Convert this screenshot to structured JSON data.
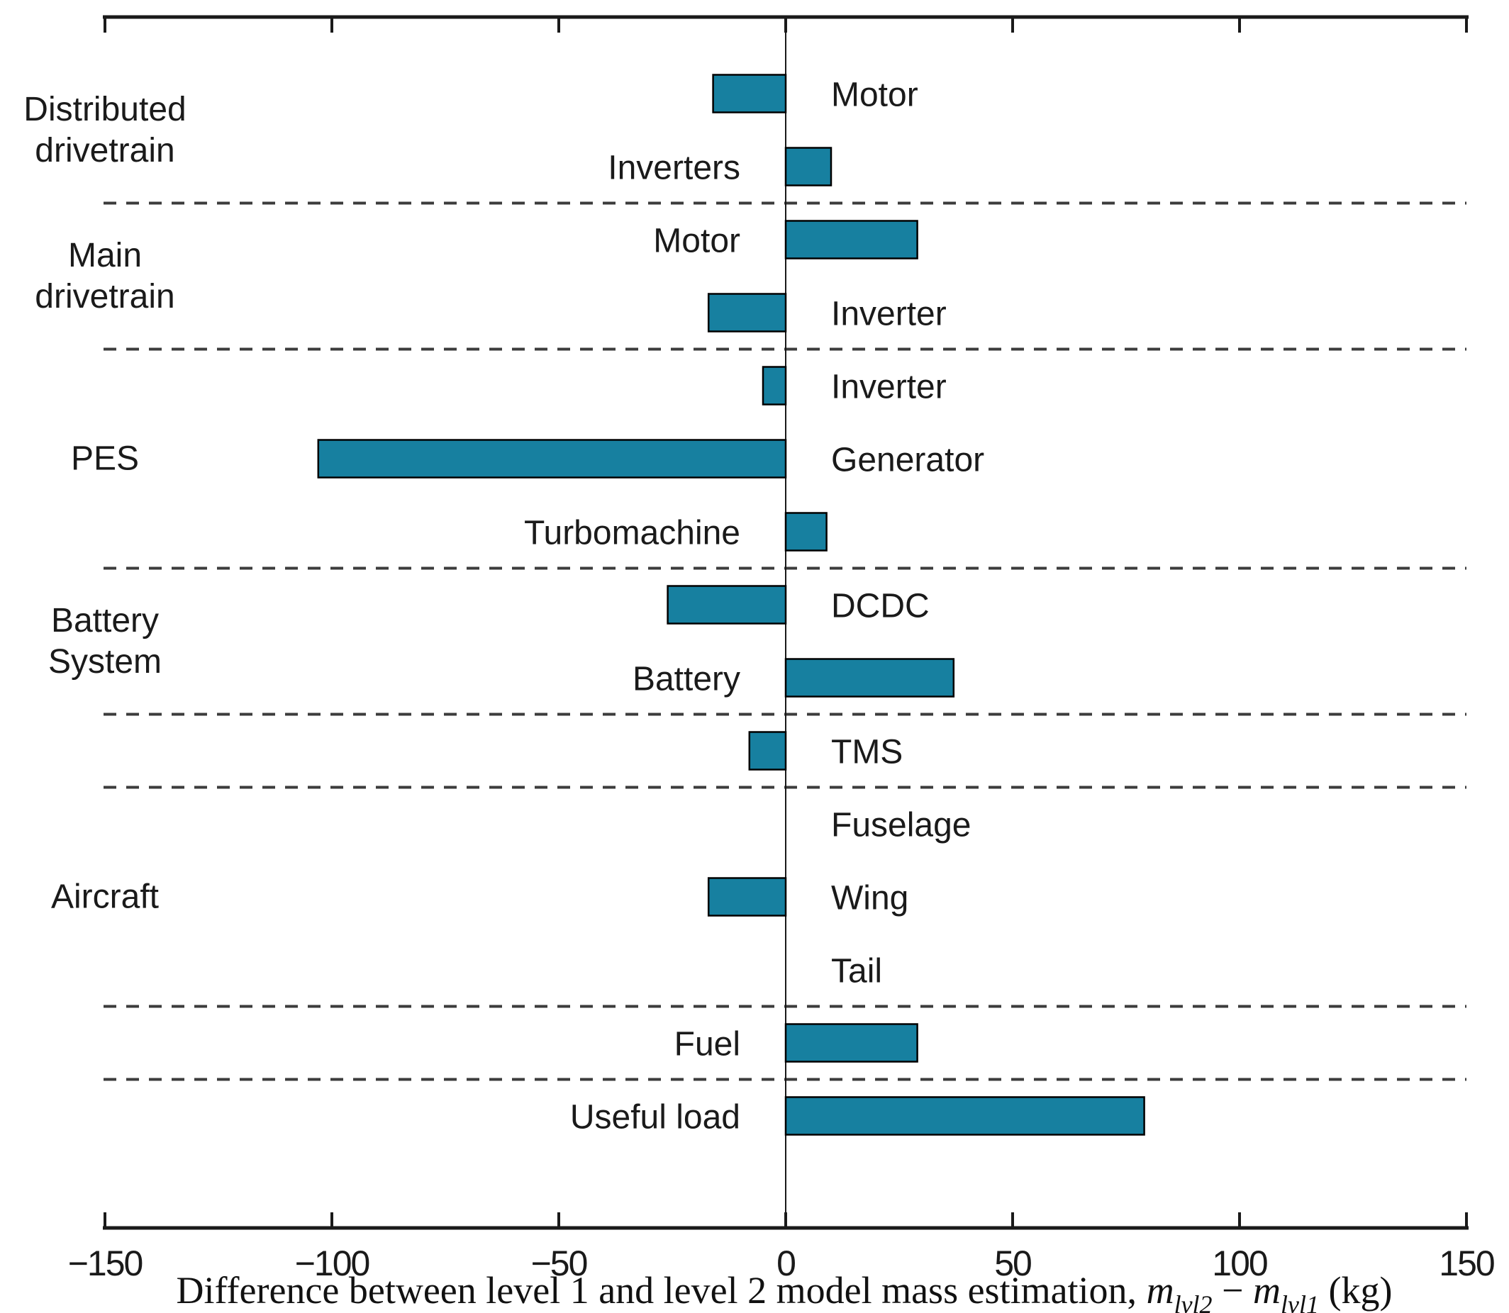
{
  "chart_data": {
    "type": "bar",
    "orientation": "horizontal",
    "title": "",
    "xlabel": "Difference between level 1 and level 2 model mass estimation, m_lvl2 − m_lvl1 (kg)",
    "xlabel_parts": {
      "prefix": "Difference between level 1 and level 2 model mass estimation,",
      "m_symbol": "m",
      "sub_level2": "lvl2",
      "minus": "−",
      "sub_level1": "lvl1",
      "suffix": "(kg)"
    },
    "xlim": [
      -150,
      150
    ],
    "xticks": [
      -150,
      -100,
      -50,
      0,
      50,
      100,
      150
    ],
    "xtick_labels": [
      "−150",
      "−100",
      "−50",
      "0",
      "50",
      "100",
      "150"
    ],
    "grid": false,
    "legend": "none",
    "bar_color": "#1780a0",
    "bar_edge_color": "#000000",
    "separator_color": "#3c3c3c",
    "axis_color": "#1a1a1a",
    "categories": [
      "Motor",
      "Inverters",
      "Motor",
      "Inverter",
      "Inverter",
      "Generator",
      "Turbomachine",
      "DCDC",
      "Battery",
      "TMS",
      "Fuselage",
      "Wing",
      "Tail",
      "Fuel",
      "Useful load"
    ],
    "values": [
      -16,
      10,
      29,
      -17,
      -5,
      -103,
      9,
      -26,
      37,
      -8,
      0,
      -17,
      0,
      29,
      79
    ],
    "groups": [
      {
        "label_lines": [
          "Distributed",
          "drivetrain"
        ],
        "row_indices": [
          0,
          1
        ]
      },
      {
        "label_lines": [
          "Main",
          "drivetrain"
        ],
        "row_indices": [
          2,
          3
        ]
      },
      {
        "label_lines": [
          "PES"
        ],
        "row_indices": [
          4,
          5,
          6
        ]
      },
      {
        "label_lines": [
          "Battery",
          "System"
        ],
        "row_indices": [
          7,
          8
        ]
      },
      {
        "label_lines": [],
        "row_indices": [
          9
        ]
      },
      {
        "label_lines": [
          "Aircraft"
        ],
        "row_indices": [
          10,
          11,
          12
        ]
      },
      {
        "label_lines": [],
        "row_indices": [
          13
        ]
      },
      {
        "label_lines": [],
        "row_indices": [
          14
        ]
      }
    ],
    "separators_after_rows": [
      1,
      3,
      6,
      8,
      9,
      12,
      13
    ]
  }
}
